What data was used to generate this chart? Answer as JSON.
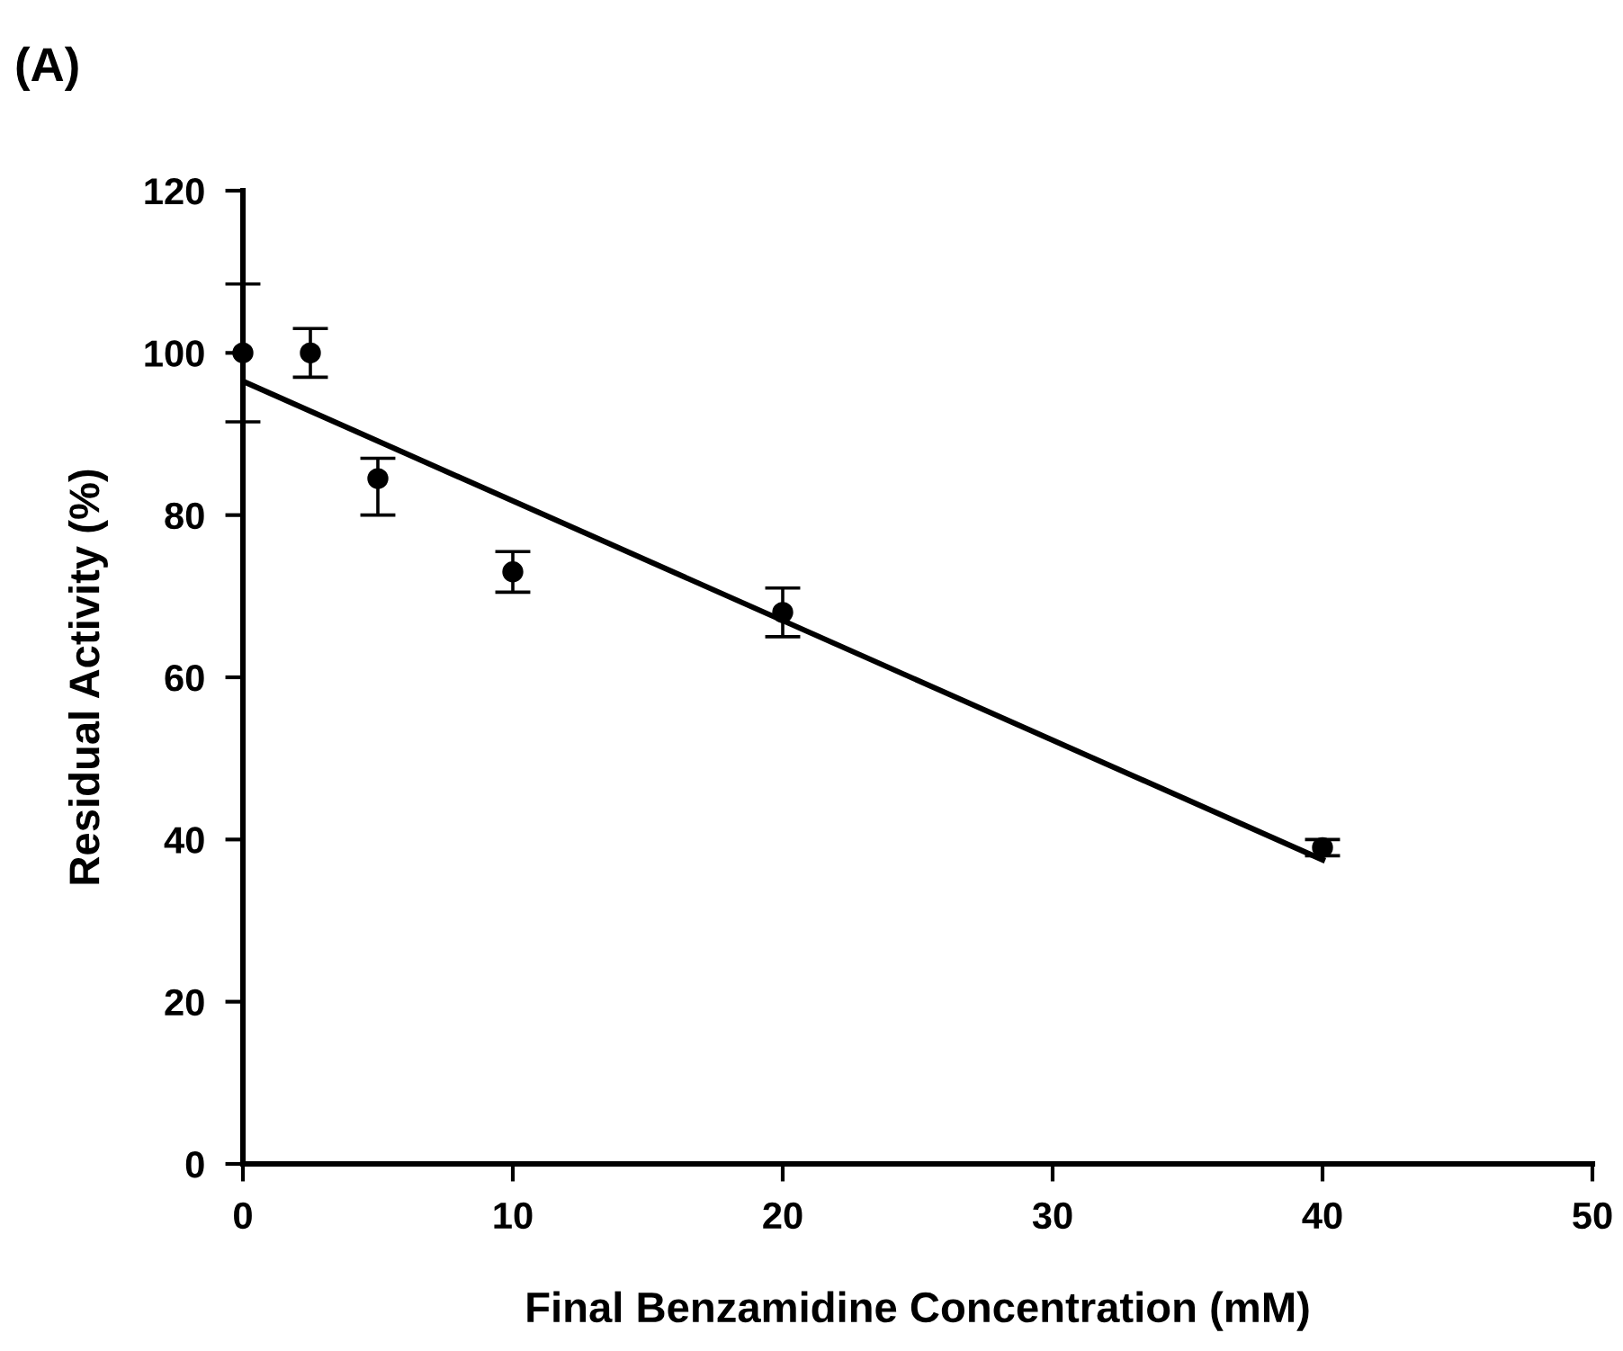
{
  "chart_data": {
    "type": "scatter",
    "title": "(A)",
    "xlabel": "Final Benzamidine Concentration (mM)",
    "ylabel": "Residual Activity (%)",
    "xlim": [
      0,
      50
    ],
    "xticks": [
      0,
      10,
      20,
      30,
      40,
      50
    ],
    "ylim": [
      0,
      120
    ],
    "yticks": [
      0,
      20,
      40,
      60,
      80,
      100,
      120
    ],
    "grid": false,
    "legend": false,
    "marker": "circle",
    "series": [
      {
        "color": "#000000",
        "x": [
          0,
          2.5,
          5,
          10,
          20,
          40
        ],
        "values": [
          100,
          100,
          84.5,
          73,
          68,
          39
        ],
        "errors": [
          8.5,
          3,
          [
            80,
            87
          ],
          2.5,
          3,
          1
        ]
      },
      {
        "type": "line",
        "color": "#000000",
        "x": [
          0,
          40
        ],
        "values": [
          96.5,
          37.5
        ],
        "marker": "none",
        "line_style": "solid"
      }
    ]
  }
}
